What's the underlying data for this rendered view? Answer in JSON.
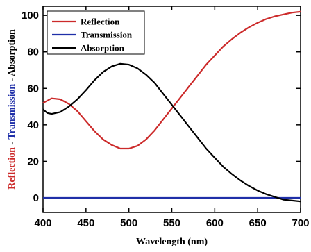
{
  "chart_data": {
    "type": "line",
    "xlabel": "Wavelength (nm)",
    "ylabel_parts": [
      {
        "text": "Reflection",
        "color": "#cc2a2a"
      },
      {
        "text": " - ",
        "color": "#000000"
      },
      {
        "text": "Transmission",
        "color": "#1f2fa8"
      },
      {
        "text": " - Absorption",
        "color": "#000000"
      }
    ],
    "xlim": [
      400,
      700
    ],
    "ylim": [
      -8,
      105
    ],
    "xticks": [
      400,
      450,
      500,
      550,
      600,
      650,
      700
    ],
    "yticks": [
      0,
      20,
      40,
      60,
      80,
      100
    ],
    "legend_position": "top-left",
    "grid": false,
    "series": [
      {
        "name": "Reflection",
        "color": "#cc2a2a",
        "x": [
          400,
          410,
          420,
          430,
          440,
          450,
          460,
          470,
          480,
          490,
          500,
          510,
          520,
          530,
          540,
          550,
          560,
          570,
          580,
          590,
          600,
          610,
          620,
          630,
          640,
          650,
          660,
          670,
          680,
          690,
          700
        ],
        "y": [
          52,
          54.5,
          54,
          51.5,
          47.5,
          42,
          36.5,
          32,
          29,
          27,
          27,
          28.5,
          32,
          37,
          43,
          49,
          55,
          61,
          67,
          73,
          78,
          83,
          87,
          90.5,
          93.5,
          96,
          98,
          99.5,
          100.5,
          101.5,
          102
        ]
      },
      {
        "name": "Transmission",
        "color": "#1f2fa8",
        "x": [
          400,
          700
        ],
        "y": [
          0,
          0
        ]
      },
      {
        "name": "Absorption",
        "color": "#000000",
        "x": [
          400,
          405,
          410,
          420,
          430,
          440,
          450,
          460,
          470,
          480,
          490,
          500,
          510,
          520,
          530,
          540,
          550,
          560,
          570,
          580,
          590,
          600,
          610,
          620,
          630,
          640,
          650,
          660,
          670,
          680,
          690,
          700
        ],
        "y": [
          48.5,
          46.5,
          46,
          47,
          50,
          54,
          59,
          64.5,
          69,
          72,
          73.5,
          73,
          71,
          67.5,
          63,
          57,
          51,
          45,
          39,
          33,
          27,
          22,
          17,
          13,
          9.5,
          6.5,
          4,
          2,
          0.5,
          -1,
          -1.5,
          -2
        ]
      }
    ]
  }
}
